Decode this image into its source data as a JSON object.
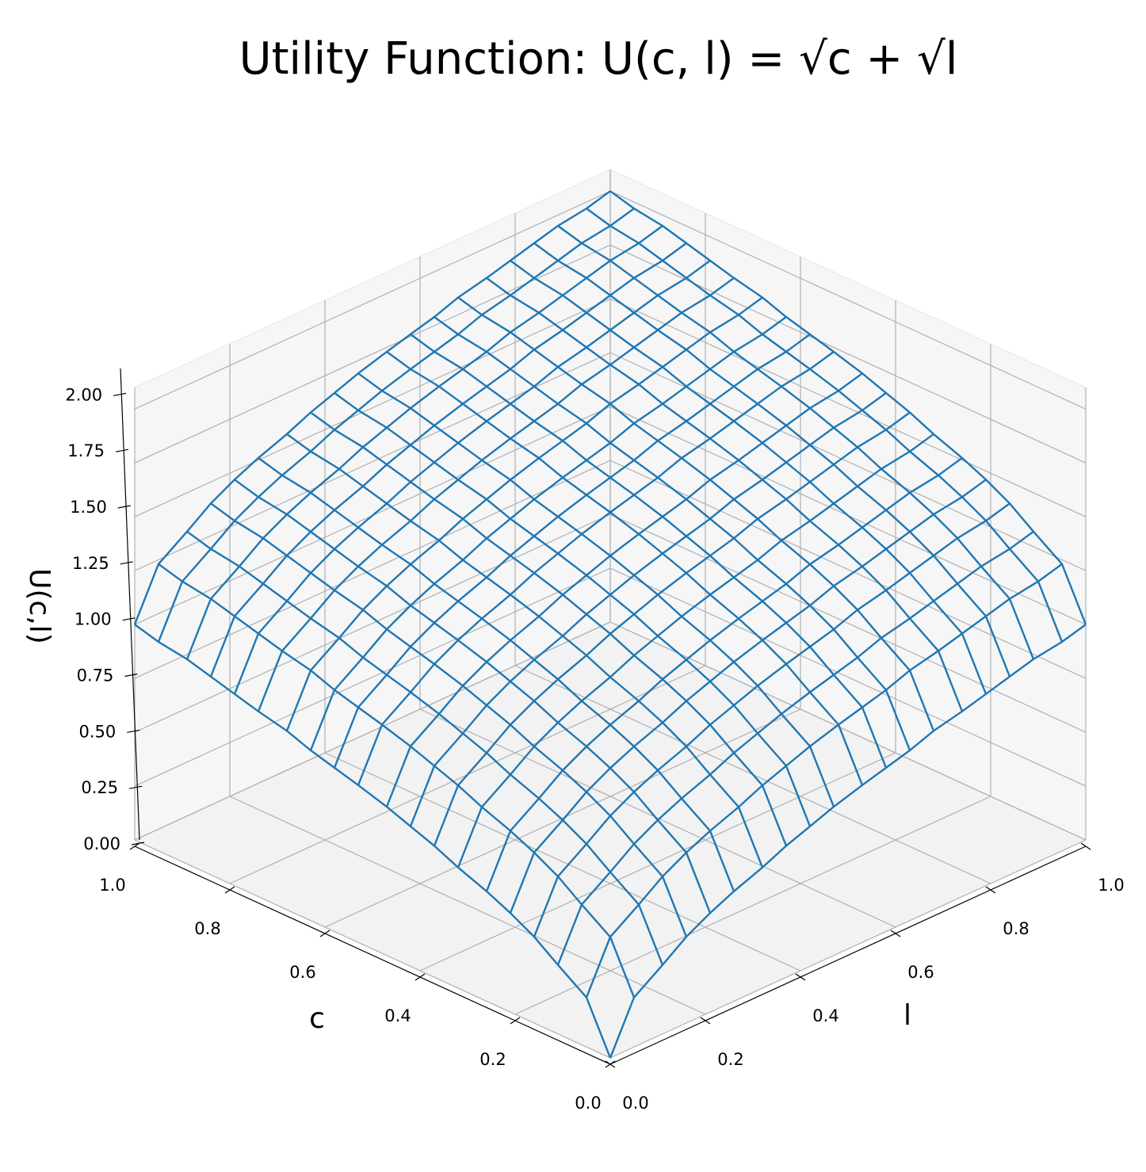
{
  "chart_data": {
    "type": "wireframe3d",
    "title": "Utility Function: U(c, l) = √c + √l",
    "xlabel": "c",
    "ylabel": "l",
    "zlabel": "U(c,l)",
    "color": "#1f77b4",
    "grid": true,
    "xlim": [
      0,
      1
    ],
    "ylim": [
      0,
      1
    ],
    "zlim": [
      0,
      2.1
    ],
    "xticks": [
      {
        "value": 0,
        "label": "0.0"
      },
      0.2,
      0.4,
      0.6,
      0.8,
      {
        "value": 1,
        "label": "1.0"
      }
    ],
    "yticks": [
      {
        "value": 0,
        "label": "0.0"
      },
      0.2,
      0.4,
      0.6,
      0.8,
      {
        "value": 1,
        "label": "1.0"
      }
    ],
    "zticks": [
      {
        "value": 0,
        "label": "0.00"
      },
      {
        "value": 0.25,
        "label": "0.25"
      },
      {
        "value": 0.5,
        "label": "0.50"
      },
      {
        "value": 0.75,
        "label": "0.75"
      },
      {
        "value": 1,
        "label": "1.00"
      },
      {
        "value": 1.25,
        "label": "1.25"
      },
      {
        "value": 1.5,
        "label": "1.50"
      },
      {
        "value": 1.75,
        "label": "1.75"
      },
      {
        "value": 2,
        "label": "2.00"
      }
    ],
    "c": [
      0,
      0.05,
      0.11,
      0.16,
      0.21,
      0.26,
      0.32,
      0.37,
      0.42,
      0.47,
      0.53,
      0.58,
      0.63,
      0.68,
      0.74,
      0.79,
      0.84,
      0.89,
      0.95,
      1
    ],
    "l": [
      0,
      0.05,
      0.11,
      0.16,
      0.21,
      0.26,
      0.32,
      0.37,
      0.42,
      0.47,
      0.53,
      0.58,
      0.63,
      0.68,
      0.74,
      0.79,
      0.84,
      0.89,
      0.95,
      1
    ],
    "z": [
      [
        0,
        0.23,
        0.32,
        0.4,
        0.46,
        0.51,
        0.56,
        0.61,
        0.65,
        0.69,
        0.73,
        0.76,
        0.79,
        0.83,
        0.86,
        0.89,
        0.92,
        0.95,
        0.97,
        1
      ],
      [
        0.23,
        0.46,
        0.55,
        0.63,
        0.69,
        0.74,
        0.79,
        0.84,
        0.88,
        0.92,
        0.96,
        0.99,
        1.02,
        1.06,
        1.09,
        1.12,
        1.15,
        1.18,
        1.2,
        1.23
      ],
      [
        0.32,
        0.55,
        0.64,
        0.72,
        0.78,
        0.83,
        0.88,
        0.93,
        0.97,
        1.01,
        1.05,
        1.08,
        1.11,
        1.15,
        1.18,
        1.21,
        1.24,
        1.27,
        1.29,
        1.32
      ],
      [
        0.4,
        0.63,
        0.72,
        0.8,
        0.86,
        0.91,
        0.96,
        1.01,
        1.05,
        1.09,
        1.13,
        1.16,
        1.19,
        1.23,
        1.26,
        1.29,
        1.32,
        1.35,
        1.37,
        1.4
      ],
      [
        0.46,
        0.69,
        0.78,
        0.86,
        0.92,
        0.97,
        1.02,
        1.07,
        1.11,
        1.15,
        1.19,
        1.22,
        1.25,
        1.29,
        1.32,
        1.35,
        1.38,
        1.41,
        1.43,
        1.46
      ],
      [
        0.51,
        0.74,
        0.83,
        0.91,
        0.97,
        1.02,
        1.07,
        1.12,
        1.16,
        1.2,
        1.24,
        1.27,
        1.3,
        1.34,
        1.37,
        1.4,
        1.43,
        1.46,
        1.48,
        1.51
      ],
      [
        0.56,
        0.79,
        0.88,
        0.96,
        1.02,
        1.07,
        1.12,
        1.17,
        1.21,
        1.25,
        1.29,
        1.32,
        1.35,
        1.39,
        1.42,
        1.45,
        1.48,
        1.51,
        1.53,
        1.56
      ],
      [
        0.61,
        0.84,
        0.93,
        1.01,
        1.07,
        1.12,
        1.17,
        1.22,
        1.26,
        1.3,
        1.34,
        1.37,
        1.4,
        1.44,
        1.47,
        1.5,
        1.53,
        1.56,
        1.58,
        1.61
      ],
      [
        0.65,
        0.88,
        0.97,
        1.05,
        1.11,
        1.16,
        1.21,
        1.26,
        1.3,
        1.34,
        1.38,
        1.41,
        1.44,
        1.48,
        1.51,
        1.54,
        1.57,
        1.6,
        1.62,
        1.65
      ],
      [
        0.69,
        0.92,
        1.01,
        1.09,
        1.15,
        1.2,
        1.25,
        1.3,
        1.34,
        1.38,
        1.42,
        1.45,
        1.48,
        1.52,
        1.55,
        1.58,
        1.61,
        1.64,
        1.66,
        1.69
      ],
      [
        0.73,
        0.96,
        1.05,
        1.13,
        1.19,
        1.24,
        1.29,
        1.34,
        1.38,
        1.42,
        1.46,
        1.49,
        1.52,
        1.56,
        1.59,
        1.62,
        1.65,
        1.68,
        1.7,
        1.73
      ],
      [
        0.76,
        0.99,
        1.08,
        1.16,
        1.22,
        1.27,
        1.32,
        1.37,
        1.41,
        1.45,
        1.49,
        1.52,
        1.55,
        1.59,
        1.62,
        1.65,
        1.68,
        1.71,
        1.73,
        1.76
      ],
      [
        0.79,
        1.02,
        1.11,
        1.19,
        1.25,
        1.3,
        1.35,
        1.4,
        1.44,
        1.48,
        1.52,
        1.55,
        1.58,
        1.62,
        1.65,
        1.68,
        1.71,
        1.74,
        1.76,
        1.79
      ],
      [
        0.83,
        1.06,
        1.15,
        1.23,
        1.29,
        1.34,
        1.39,
        1.44,
        1.48,
        1.52,
        1.56,
        1.59,
        1.62,
        1.66,
        1.69,
        1.72,
        1.75,
        1.78,
        1.8,
        1.83
      ],
      [
        0.86,
        1.09,
        1.18,
        1.26,
        1.32,
        1.37,
        1.42,
        1.47,
        1.51,
        1.55,
        1.59,
        1.62,
        1.65,
        1.69,
        1.72,
        1.75,
        1.78,
        1.81,
        1.83,
        1.86
      ],
      [
        0.89,
        1.12,
        1.21,
        1.29,
        1.35,
        1.4,
        1.45,
        1.5,
        1.54,
        1.58,
        1.62,
        1.65,
        1.68,
        1.72,
        1.75,
        1.78,
        1.81,
        1.84,
        1.86,
        1.89
      ],
      [
        0.92,
        1.15,
        1.24,
        1.32,
        1.38,
        1.43,
        1.48,
        1.53,
        1.57,
        1.61,
        1.65,
        1.68,
        1.71,
        1.75,
        1.78,
        1.81,
        1.84,
        1.87,
        1.89,
        1.92
      ],
      [
        0.95,
        1.18,
        1.27,
        1.35,
        1.41,
        1.46,
        1.51,
        1.56,
        1.6,
        1.64,
        1.68,
        1.71,
        1.74,
        1.78,
        1.81,
        1.84,
        1.87,
        1.9,
        1.92,
        1.95
      ],
      [
        0.97,
        1.2,
        1.29,
        1.37,
        1.43,
        1.48,
        1.53,
        1.58,
        1.62,
        1.66,
        1.7,
        1.73,
        1.76,
        1.8,
        1.83,
        1.86,
        1.89,
        1.92,
        1.94,
        1.97
      ],
      [
        1,
        1.23,
        1.32,
        1.4,
        1.46,
        1.51,
        1.56,
        1.61,
        1.65,
        1.69,
        1.73,
        1.76,
        1.79,
        1.83,
        1.86,
        1.89,
        1.92,
        1.95,
        1.97,
        2
      ]
    ]
  }
}
